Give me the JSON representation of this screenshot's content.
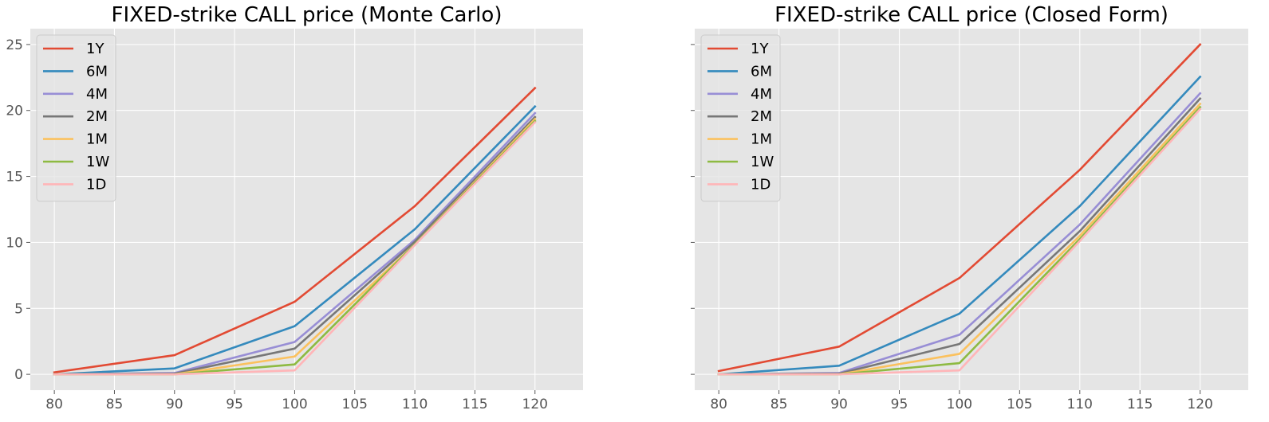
{
  "chart_data": [
    {
      "type": "line",
      "title": "FIXED-strike CALL price (Monte Carlo)",
      "xlabel": "",
      "ylabel": "",
      "x": [
        80,
        90,
        100,
        110,
        120
      ],
      "xlim": [
        78,
        124
      ],
      "ylim": [
        -1.2,
        26.2
      ],
      "xticks": [
        80,
        85,
        90,
        95,
        100,
        105,
        110,
        115,
        120
      ],
      "yticks": [
        0,
        5,
        10,
        15,
        20,
        25
      ],
      "show_ytick_labels": true,
      "grid": true,
      "legend": "top-left",
      "series": [
        {
          "name": "1Y",
          "color": "#E24A33",
          "values": [
            0.15,
            1.45,
            5.5,
            12.75,
            21.7
          ]
        },
        {
          "name": "6M",
          "color": "#348ABD",
          "values": [
            0.0,
            0.45,
            3.65,
            11.0,
            20.3
          ]
        },
        {
          "name": "4M",
          "color": "#988ED5",
          "values": [
            0.0,
            0.1,
            2.45,
            10.2,
            19.8
          ]
        },
        {
          "name": "2M",
          "color": "#777777",
          "values": [
            0.0,
            0.05,
            1.95,
            10.05,
            19.5
          ]
        },
        {
          "name": "1M",
          "color": "#FBC15E",
          "values": [
            0.0,
            0.0,
            1.35,
            9.85,
            19.35
          ]
        },
        {
          "name": "1W",
          "color": "#8EBA42",
          "values": [
            0.0,
            0.0,
            0.75,
            9.85,
            19.2
          ]
        },
        {
          "name": "1D",
          "color": "#FFB5B8",
          "values": [
            0.0,
            0.0,
            0.3,
            9.8,
            19.1
          ]
        }
      ]
    },
    {
      "type": "line",
      "title": "FIXED-strike CALL price (Closed Form)",
      "xlabel": "",
      "ylabel": "",
      "x": [
        80,
        90,
        100,
        110,
        120
      ],
      "xlim": [
        78,
        124
      ],
      "ylim": [
        -1.2,
        26.2
      ],
      "xticks": [
        80,
        85,
        90,
        95,
        100,
        105,
        110,
        115,
        120
      ],
      "yticks": [
        0,
        5,
        10,
        15,
        20,
        25
      ],
      "show_ytick_labels": false,
      "grid": true,
      "legend": "top-left",
      "series": [
        {
          "name": "1Y",
          "color": "#E24A33",
          "values": [
            0.25,
            2.1,
            7.3,
            15.5,
            25.0
          ]
        },
        {
          "name": "6M",
          "color": "#348ABD",
          "values": [
            0.0,
            0.65,
            4.6,
            12.75,
            22.55
          ]
        },
        {
          "name": "4M",
          "color": "#988ED5",
          "values": [
            0.0,
            0.1,
            3.0,
            11.35,
            21.3
          ]
        },
        {
          "name": "2M",
          "color": "#777777",
          "values": [
            0.0,
            0.05,
            2.3,
            10.85,
            20.9
          ]
        },
        {
          "name": "1M",
          "color": "#FBC15E",
          "values": [
            0.0,
            0.0,
            1.55,
            10.5,
            20.5
          ]
        },
        {
          "name": "1W",
          "color": "#8EBA42",
          "values": [
            0.0,
            0.0,
            0.85,
            10.25,
            20.25
          ]
        },
        {
          "name": "1D",
          "color": "#FFB5B8",
          "values": [
            0.0,
            0.0,
            0.3,
            10.1,
            20.1
          ]
        }
      ]
    }
  ]
}
